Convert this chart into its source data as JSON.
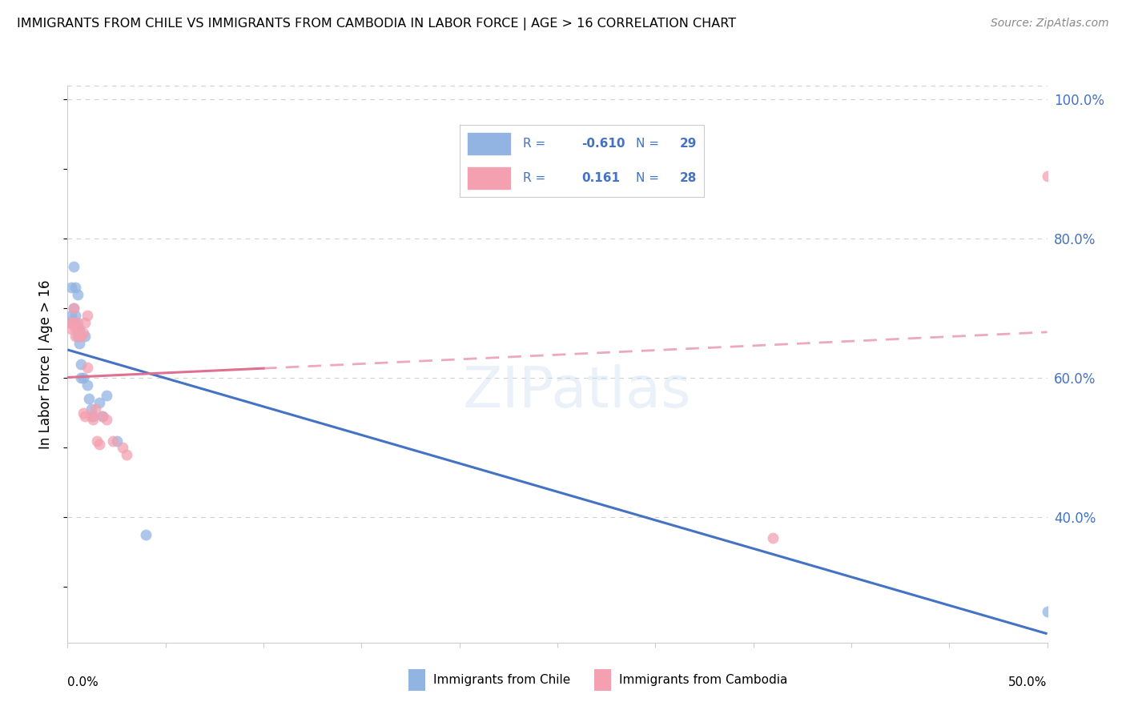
{
  "title": "IMMIGRANTS FROM CHILE VS IMMIGRANTS FROM CAMBODIA IN LABOR FORCE | AGE > 16 CORRELATION CHART",
  "source": "Source: ZipAtlas.com",
  "ylabel": "In Labor Force | Age > 16",
  "right_yticks": [
    1.0,
    0.8,
    0.6,
    0.4
  ],
  "right_yticklabels": [
    "100.0%",
    "80.0%",
    "60.0%",
    "40.0%"
  ],
  "chile_color": "#92b4e3",
  "cambodia_color": "#f4a0b0",
  "chile_line_color": "#4472c4",
  "cambodia_line_color": "#e07090",
  "chile_label": "Immigrants from Chile",
  "cambodia_label": "Immigrants from Cambodia",
  "legend_R_chile": "-0.610",
  "legend_N_chile": "29",
  "legend_R_cambodia": "0.161",
  "legend_N_cambodia": "28",
  "chile_scatter_x": [
    0.001,
    0.002,
    0.002,
    0.003,
    0.003,
    0.003,
    0.003,
    0.004,
    0.004,
    0.004,
    0.005,
    0.005,
    0.005,
    0.006,
    0.006,
    0.007,
    0.007,
    0.008,
    0.009,
    0.01,
    0.011,
    0.012,
    0.013,
    0.016,
    0.018,
    0.02,
    0.025,
    0.04,
    0.5
  ],
  "chile_scatter_y": [
    0.68,
    0.69,
    0.73,
    0.68,
    0.7,
    0.76,
    0.68,
    0.68,
    0.73,
    0.69,
    0.67,
    0.66,
    0.72,
    0.67,
    0.65,
    0.62,
    0.6,
    0.6,
    0.66,
    0.59,
    0.57,
    0.555,
    0.545,
    0.565,
    0.545,
    0.575,
    0.51,
    0.375,
    0.265
  ],
  "cambodia_scatter_x": [
    0.001,
    0.002,
    0.003,
    0.003,
    0.004,
    0.004,
    0.005,
    0.005,
    0.006,
    0.007,
    0.008,
    0.008,
    0.009,
    0.009,
    0.01,
    0.01,
    0.012,
    0.013,
    0.014,
    0.015,
    0.016,
    0.018,
    0.02,
    0.023,
    0.028,
    0.03,
    0.36,
    0.5
  ],
  "cambodia_scatter_y": [
    0.68,
    0.67,
    0.68,
    0.7,
    0.67,
    0.66,
    0.68,
    0.67,
    0.66,
    0.66,
    0.665,
    0.55,
    0.545,
    0.68,
    0.615,
    0.69,
    0.545,
    0.54,
    0.555,
    0.51,
    0.505,
    0.545,
    0.54,
    0.51,
    0.5,
    0.49,
    0.37,
    0.89
  ],
  "xlim": [
    0.0,
    0.5
  ],
  "ylim": [
    0.22,
    1.02
  ],
  "background_color": "#ffffff",
  "grid_color": "#d0d0d0"
}
